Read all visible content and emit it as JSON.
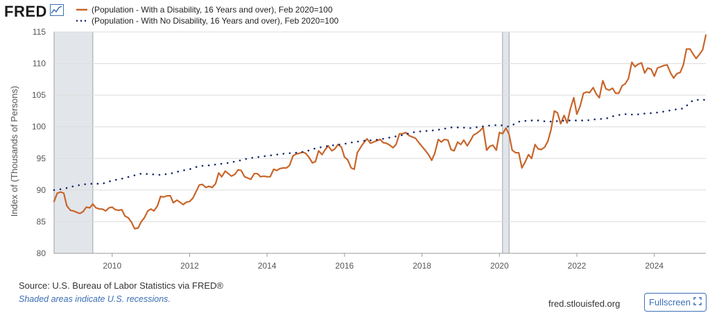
{
  "header": {
    "logo_text": "FRED",
    "logo_icon": "line-chart-icon"
  },
  "legend": {
    "items": [
      {
        "label": "(Population - With a Disability, 16 Years and over), Feb 2020=100",
        "color": "#c8652a",
        "style": "solid"
      },
      {
        "label": "(Population - With No Disability, 16 Years and over), Feb 2020=100",
        "color": "#1b2a6b",
        "style": "dotted"
      }
    ]
  },
  "footer": {
    "source": "Source: U.S. Bureau of Labor Statistics via FRED®",
    "recession_note": "Shaded areas indicate U.S. recessions.",
    "site": "fred.stlouisfed.org",
    "fullscreen_label": "Fullscreen"
  },
  "chart_data": {
    "type": "line",
    "ylabel": "Index of (Thousands of Persons)",
    "xlabel": "",
    "ylim": [
      80,
      115
    ],
    "xlim": [
      2008.5,
      2025.33
    ],
    "yticks": [
      80,
      85,
      90,
      95,
      100,
      105,
      110,
      115
    ],
    "xticks": [
      2010,
      2012,
      2014,
      2016,
      2018,
      2020,
      2022,
      2024
    ],
    "xtick_labels": [
      "2010",
      "2012",
      "2014",
      "2016",
      "2018",
      "2020",
      "2022",
      "2024"
    ],
    "grid": true,
    "recessions": [
      [
        2008.5,
        2009.5
      ],
      [
        2020.08,
        2020.25
      ]
    ],
    "series": [
      {
        "name": "(Population - With a Disability, 16 Years and over), Feb 2020=100",
        "color": "#c8652a",
        "style": "solid",
        "points": [
          [
            2008.5,
            88.2
          ],
          [
            2008.58,
            89.5
          ],
          [
            2008.67,
            89.7
          ],
          [
            2008.75,
            89.5
          ],
          [
            2008.83,
            87.5
          ],
          [
            2008.92,
            86.8
          ],
          [
            2009.0,
            86.7
          ],
          [
            2009.08,
            86.5
          ],
          [
            2009.17,
            86.3
          ],
          [
            2009.25,
            86.6
          ],
          [
            2009.33,
            87.3
          ],
          [
            2009.42,
            87.2
          ],
          [
            2009.5,
            87.8
          ],
          [
            2009.58,
            87.2
          ],
          [
            2009.67,
            87.0
          ],
          [
            2009.75,
            87.0
          ],
          [
            2009.83,
            86.7
          ],
          [
            2009.92,
            87.2
          ],
          [
            2010.0,
            87.3
          ],
          [
            2010.08,
            86.9
          ],
          [
            2010.17,
            86.8
          ],
          [
            2010.25,
            86.9
          ],
          [
            2010.33,
            85.9
          ],
          [
            2010.42,
            85.6
          ],
          [
            2010.5,
            84.9
          ],
          [
            2010.58,
            83.9
          ],
          [
            2010.67,
            84.0
          ],
          [
            2010.75,
            85.0
          ],
          [
            2010.83,
            85.6
          ],
          [
            2010.92,
            86.7
          ],
          [
            2011.0,
            87.0
          ],
          [
            2011.08,
            86.7
          ],
          [
            2011.17,
            87.5
          ],
          [
            2011.25,
            89.0
          ],
          [
            2011.33,
            88.9
          ],
          [
            2011.42,
            89.1
          ],
          [
            2011.5,
            89.1
          ],
          [
            2011.58,
            88.0
          ],
          [
            2011.67,
            88.4
          ],
          [
            2011.75,
            88.1
          ],
          [
            2011.83,
            87.7
          ],
          [
            2011.92,
            88.1
          ],
          [
            2012.0,
            88.2
          ],
          [
            2012.08,
            88.7
          ],
          [
            2012.17,
            89.8
          ],
          [
            2012.25,
            90.8
          ],
          [
            2012.33,
            90.9
          ],
          [
            2012.42,
            90.4
          ],
          [
            2012.5,
            90.6
          ],
          [
            2012.58,
            90.4
          ],
          [
            2012.67,
            91.0
          ],
          [
            2012.75,
            92.7
          ],
          [
            2012.83,
            92.1
          ],
          [
            2012.92,
            93.0
          ],
          [
            2013.0,
            92.6
          ],
          [
            2013.08,
            92.2
          ],
          [
            2013.17,
            92.5
          ],
          [
            2013.25,
            93.2
          ],
          [
            2013.33,
            93.1
          ],
          [
            2013.42,
            92.1
          ],
          [
            2013.5,
            91.9
          ],
          [
            2013.58,
            91.7
          ],
          [
            2013.67,
            92.6
          ],
          [
            2013.75,
            92.6
          ],
          [
            2013.83,
            92.1
          ],
          [
            2013.92,
            92.2
          ],
          [
            2014.0,
            92.1
          ],
          [
            2014.08,
            92.1
          ],
          [
            2014.17,
            93.3
          ],
          [
            2014.25,
            93.1
          ],
          [
            2014.33,
            93.4
          ],
          [
            2014.42,
            93.5
          ],
          [
            2014.5,
            93.5
          ],
          [
            2014.58,
            93.9
          ],
          [
            2014.67,
            95.4
          ],
          [
            2014.75,
            95.7
          ],
          [
            2014.83,
            95.8
          ],
          [
            2014.92,
            96.0
          ],
          [
            2015.0,
            95.8
          ],
          [
            2015.08,
            95.2
          ],
          [
            2015.17,
            94.3
          ],
          [
            2015.25,
            94.5
          ],
          [
            2015.33,
            96.2
          ],
          [
            2015.42,
            95.6
          ],
          [
            2015.5,
            96.4
          ],
          [
            2015.58,
            97.0
          ],
          [
            2015.67,
            96.2
          ],
          [
            2015.75,
            96.5
          ],
          [
            2015.83,
            97.2
          ],
          [
            2015.92,
            96.8
          ],
          [
            2016.0,
            95.2
          ],
          [
            2016.08,
            94.8
          ],
          [
            2016.17,
            93.5
          ],
          [
            2016.25,
            93.3
          ],
          [
            2016.33,
            95.9
          ],
          [
            2016.42,
            96.8
          ],
          [
            2016.5,
            97.5
          ],
          [
            2016.58,
            98.1
          ],
          [
            2016.67,
            97.4
          ],
          [
            2016.75,
            97.6
          ],
          [
            2016.83,
            97.8
          ],
          [
            2016.92,
            98.0
          ],
          [
            2017.0,
            97.5
          ],
          [
            2017.08,
            97.4
          ],
          [
            2017.17,
            97.1
          ],
          [
            2017.25,
            96.7
          ],
          [
            2017.33,
            97.2
          ],
          [
            2017.42,
            98.9
          ],
          [
            2017.5,
            98.9
          ],
          [
            2017.58,
            99.1
          ],
          [
            2017.67,
            98.6
          ],
          [
            2017.75,
            98.4
          ],
          [
            2017.83,
            98.2
          ],
          [
            2017.92,
            97.5
          ],
          [
            2018.0,
            96.9
          ],
          [
            2018.08,
            96.3
          ],
          [
            2018.17,
            95.6
          ],
          [
            2018.25,
            94.7
          ],
          [
            2018.33,
            95.8
          ],
          [
            2018.42,
            98.0
          ],
          [
            2018.5,
            97.6
          ],
          [
            2018.58,
            98.0
          ],
          [
            2018.67,
            97.9
          ],
          [
            2018.75,
            96.4
          ],
          [
            2018.83,
            96.2
          ],
          [
            2018.92,
            97.6
          ],
          [
            2019.0,
            97.2
          ],
          [
            2019.08,
            97.9
          ],
          [
            2019.17,
            97.0
          ],
          [
            2019.25,
            97.8
          ],
          [
            2019.33,
            98.7
          ],
          [
            2019.42,
            99.0
          ],
          [
            2019.5,
            99.4
          ],
          [
            2019.58,
            99.9
          ],
          [
            2019.67,
            96.3
          ],
          [
            2019.75,
            96.9
          ],
          [
            2019.83,
            97.1
          ],
          [
            2019.92,
            96.3
          ],
          [
            2020.0,
            99.1
          ],
          [
            2020.08,
            98.9
          ],
          [
            2020.17,
            99.8
          ],
          [
            2020.25,
            98.8
          ],
          [
            2020.33,
            96.3
          ],
          [
            2020.42,
            95.9
          ],
          [
            2020.5,
            95.9
          ],
          [
            2020.58,
            93.5
          ],
          [
            2020.67,
            94.5
          ],
          [
            2020.75,
            95.6
          ],
          [
            2020.83,
            95.0
          ],
          [
            2020.92,
            97.2
          ],
          [
            2021.0,
            96.5
          ],
          [
            2021.08,
            96.4
          ],
          [
            2021.17,
            96.8
          ],
          [
            2021.25,
            97.7
          ],
          [
            2021.33,
            99.5
          ],
          [
            2021.42,
            102.5
          ],
          [
            2021.5,
            102.2
          ],
          [
            2021.58,
            100.5
          ],
          [
            2021.67,
            101.8
          ],
          [
            2021.75,
            100.6
          ],
          [
            2021.83,
            102.8
          ],
          [
            2021.92,
            104.6
          ],
          [
            2022.0,
            102.0
          ],
          [
            2022.08,
            103.2
          ],
          [
            2022.17,
            105.3
          ],
          [
            2022.25,
            105.5
          ],
          [
            2022.33,
            105.4
          ],
          [
            2022.42,
            106.2
          ],
          [
            2022.5,
            105.2
          ],
          [
            2022.58,
            104.6
          ],
          [
            2022.67,
            107.3
          ],
          [
            2022.75,
            106.0
          ],
          [
            2022.83,
            105.8
          ],
          [
            2022.92,
            106.1
          ],
          [
            2023.0,
            105.3
          ],
          [
            2023.08,
            105.3
          ],
          [
            2023.17,
            106.5
          ],
          [
            2023.25,
            106.8
          ],
          [
            2023.33,
            107.6
          ],
          [
            2023.42,
            110.2
          ],
          [
            2023.5,
            109.5
          ],
          [
            2023.58,
            109.9
          ],
          [
            2023.67,
            110.1
          ],
          [
            2023.75,
            108.5
          ],
          [
            2023.83,
            109.3
          ],
          [
            2023.92,
            109.1
          ],
          [
            2024.0,
            108.0
          ],
          [
            2024.08,
            109.3
          ],
          [
            2024.17,
            109.5
          ],
          [
            2024.25,
            109.7
          ],
          [
            2024.33,
            109.8
          ],
          [
            2024.42,
            108.5
          ],
          [
            2024.5,
            107.7
          ],
          [
            2024.58,
            108.4
          ],
          [
            2024.67,
            108.6
          ],
          [
            2024.75,
            109.8
          ],
          [
            2024.83,
            112.3
          ],
          [
            2024.92,
            112.3
          ],
          [
            2025.0,
            111.5
          ],
          [
            2025.08,
            110.8
          ],
          [
            2025.17,
            111.5
          ],
          [
            2025.25,
            112.2
          ],
          [
            2025.33,
            114.5
          ]
        ]
      },
      {
        "name": "(Population - With No Disability, 16 Years and over), Feb 2020=100",
        "color": "#1b2a6b",
        "style": "dotted",
        "points": [
          [
            2008.5,
            90.0
          ],
          [
            2008.75,
            90.2
          ],
          [
            2009.0,
            90.6
          ],
          [
            2009.25,
            90.9
          ],
          [
            2009.5,
            91.0
          ],
          [
            2009.75,
            91.0
          ],
          [
            2010.0,
            91.5
          ],
          [
            2010.25,
            91.8
          ],
          [
            2010.5,
            92.2
          ],
          [
            2010.75,
            92.6
          ],
          [
            2011.0,
            92.5
          ],
          [
            2011.25,
            92.4
          ],
          [
            2011.5,
            92.6
          ],
          [
            2011.75,
            93.0
          ],
          [
            2012.0,
            93.3
          ],
          [
            2012.25,
            93.8
          ],
          [
            2012.5,
            93.9
          ],
          [
            2012.75,
            94.1
          ],
          [
            2013.0,
            94.3
          ],
          [
            2013.25,
            94.6
          ],
          [
            2013.5,
            95.0
          ],
          [
            2013.75,
            95.2
          ],
          [
            2014.0,
            95.4
          ],
          [
            2014.25,
            95.6
          ],
          [
            2014.5,
            95.8
          ],
          [
            2014.75,
            95.9
          ],
          [
            2015.0,
            96.1
          ],
          [
            2015.25,
            96.6
          ],
          [
            2015.5,
            96.9
          ],
          [
            2015.75,
            97.1
          ],
          [
            2016.0,
            97.3
          ],
          [
            2016.25,
            97.6
          ],
          [
            2016.5,
            97.8
          ],
          [
            2016.75,
            97.9
          ],
          [
            2017.0,
            98.1
          ],
          [
            2017.25,
            98.4
          ],
          [
            2017.5,
            98.7
          ],
          [
            2017.75,
            99.1
          ],
          [
            2018.0,
            99.3
          ],
          [
            2018.25,
            99.4
          ],
          [
            2018.5,
            99.6
          ],
          [
            2018.75,
            99.9
          ],
          [
            2019.0,
            99.9
          ],
          [
            2019.25,
            99.8
          ],
          [
            2019.5,
            100.0
          ],
          [
            2019.75,
            100.2
          ],
          [
            2020.0,
            100.3
          ],
          [
            2020.25,
            100.0
          ],
          [
            2020.5,
            100.8
          ],
          [
            2020.75,
            101.0
          ],
          [
            2021.0,
            101.0
          ],
          [
            2021.25,
            100.8
          ],
          [
            2021.5,
            100.9
          ],
          [
            2021.75,
            101.0
          ],
          [
            2022.0,
            101.0
          ],
          [
            2022.25,
            101.0
          ],
          [
            2022.5,
            101.2
          ],
          [
            2022.75,
            101.3
          ],
          [
            2023.0,
            101.8
          ],
          [
            2023.25,
            102.0
          ],
          [
            2023.5,
            101.9
          ],
          [
            2023.75,
            102.1
          ],
          [
            2024.0,
            102.2
          ],
          [
            2024.25,
            102.4
          ],
          [
            2024.5,
            102.7
          ],
          [
            2024.75,
            102.9
          ],
          [
            2025.0,
            104.2
          ],
          [
            2025.25,
            104.3
          ],
          [
            2025.33,
            104.2
          ]
        ]
      }
    ]
  }
}
